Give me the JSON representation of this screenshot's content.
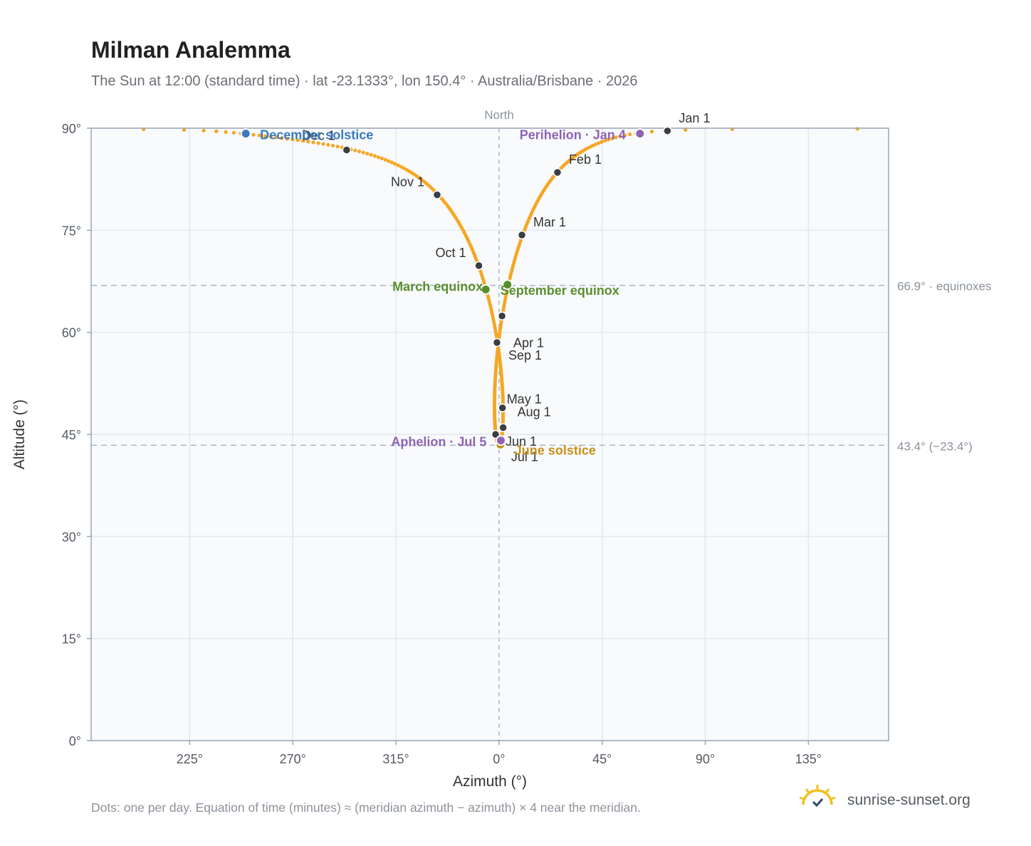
{
  "title": "Milman Analemma",
  "subtitle": "The Sun at 12:00 (standard time) · lat -23.1333°, lon 150.4° · Australia/Brisbane · 2026",
  "footnote": "Dots: one per day. Equation of time (minutes) ≈ (meridian azimuth − azimuth) × 4 near the meridian.",
  "brand": {
    "name": "sunrise-sunset.org",
    "icon": "sun-check-icon"
  },
  "colors": {
    "curve": "#f5a623",
    "month_marker": "#3a3d42",
    "solstice_dec": "#3a7bbf",
    "solstice_jun": "#c8901a",
    "equinox": "#5a8f2e",
    "apsis": "#8e63b5",
    "ref_line": "#aab8c5",
    "plot_bg": "#f8fafc",
    "grid": "#e3e8ee",
    "frame": "#9aa6b5"
  },
  "chart_data": {
    "type": "scatter",
    "xlabel": "Azimuth (°)",
    "ylabel": "Altitude (°)",
    "x_ticks": [
      "225°",
      "270°",
      "315°",
      "0°",
      "45°",
      "90°",
      "135°"
    ],
    "x_tick_values": [
      -135,
      -90,
      -45,
      0,
      45,
      90,
      135
    ],
    "y_ticks": [
      "0°",
      "15°",
      "30°",
      "45°",
      "60°",
      "75°",
      "90°"
    ],
    "y_tick_values": [
      0,
      15,
      30,
      45,
      60,
      75,
      90
    ],
    "xlim": [
      -178,
      170
    ],
    "ylim": [
      0,
      90
    ],
    "north_label": "North",
    "north_azimuth": 0,
    "reference_lines": [
      {
        "altitude": 66.9,
        "label": "66.9° · equinoxes"
      },
      {
        "altitude": 43.4,
        "label": "43.4° (−23.4°)"
      }
    ],
    "month_markers": [
      {
        "label": "Jan 1",
        "az": 73.5,
        "alt": 89.6
      },
      {
        "label": "Feb 1",
        "az": 25.5,
        "alt": 83.5
      },
      {
        "label": "Mar 1",
        "az": 10.0,
        "alt": 74.3
      },
      {
        "label": "Apr 1",
        "az": 1.3,
        "alt": 62.4
      },
      {
        "label": "May 1",
        "az": 1.5,
        "alt": 48.9
      },
      {
        "label": "Jun 1",
        "az": -1.5,
        "alt": 45.0
      },
      {
        "label": "Jul 1",
        "az": 0.3,
        "alt": 43.6
      },
      {
        "label": "Aug 1",
        "az": 1.8,
        "alt": 46.0
      },
      {
        "label": "Sep 1",
        "az": -0.9,
        "alt": 58.5
      },
      {
        "label": "Oct 1",
        "az": -8.8,
        "alt": 69.8
      },
      {
        "label": "Nov 1",
        "az": -27.0,
        "alt": 80.2
      },
      {
        "label": "Dec 1",
        "az": -66.5,
        "alt": 86.8
      }
    ],
    "events": [
      {
        "label": "December solstice",
        "az": -110.5,
        "alt": 89.2,
        "kind": "solstice_dec"
      },
      {
        "label": "June solstice",
        "az": 0.6,
        "alt": 43.5,
        "kind": "solstice_jun"
      },
      {
        "label": "March equinox",
        "az": -5.8,
        "alt": 66.3,
        "kind": "equinox"
      },
      {
        "label": "September equinox",
        "az": 3.7,
        "alt": 67.0,
        "kind": "equinox"
      },
      {
        "label": "Perihelion · Jan 4",
        "az": 61.5,
        "alt": 89.2,
        "kind": "apsis"
      },
      {
        "label": "Aphelion · Jul 5",
        "az": 0.8,
        "alt": 44.1,
        "kind": "apsis"
      }
    ]
  }
}
